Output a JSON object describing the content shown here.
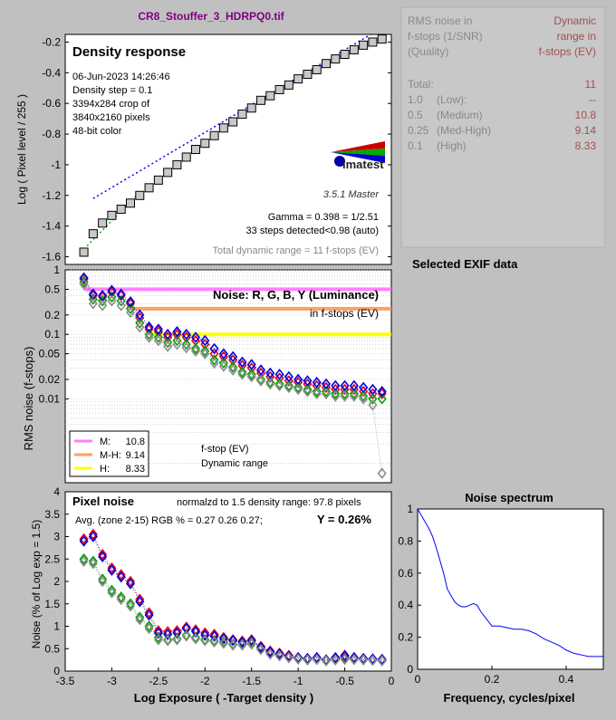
{
  "title": "CR8_Stouffer_3_HDRPQ0.tif",
  "colors": {
    "background": "#c0c0c0",
    "title": "#800080",
    "panel": "#c8c8c8",
    "red": "#e8001a",
    "green": "#00a000",
    "blue": "#0000e0",
    "gray": "#8c8c8c",
    "magenta": "#ff80ff",
    "orange": "#ffa060",
    "yellow": "#ffff00",
    "dark_red_value": "#804040"
  },
  "side_panel": {
    "header_left": [
      "RMS noise in",
      "f-stops (1/SNR)",
      "(Quality)"
    ],
    "header_right": [
      "Dynamic",
      "range in",
      "f-stops (EV)"
    ],
    "rows": [
      {
        "label": "Total:",
        "quality": "",
        "value": "11"
      },
      {
        "label": "1.0",
        "quality": "(Low):",
        "value": "--"
      },
      {
        "label": "0.5",
        "quality": "(Medium)",
        "value": "10.8"
      },
      {
        "label": "0.25",
        "quality": "(Med-High)",
        "value": "9.14"
      },
      {
        "label": "0.1",
        "quality": "(High)",
        "value": "8.33"
      }
    ],
    "exif_title": "Selected EXIF data"
  },
  "chart_data": [
    {
      "type": "scatter",
      "title": "Density response",
      "ylabel": "Log ( Pixel level / 255 )",
      "xlim": [
        -3.5,
        0
      ],
      "ylim": [
        -1.65,
        -0.15
      ],
      "yticks": [
        "-0.2",
        "-0.4",
        "-0.6",
        "-0.8",
        "-1",
        "-1.2",
        "-1.4",
        "-1.6"
      ],
      "info": [
        "06-Jun-2023 14:26:46",
        "Density step = 0.1",
        "3394x284 crop of",
        "3840x2160 pixels",
        "48-bit color"
      ],
      "logo_text": "imatest",
      "version": "3.5.1   Master",
      "gamma": "Gamma = 0.398 = 1/2.51",
      "steps": "33 steps detected<0.98 (auto)",
      "total_dr": "Total dynamic range = 11 f-stops (EV)",
      "x": [
        -3.3,
        -3.2,
        -3.1,
        -3.0,
        -2.9,
        -2.8,
        -2.7,
        -2.6,
        -2.5,
        -2.4,
        -2.3,
        -2.2,
        -2.1,
        -2.0,
        -1.9,
        -1.8,
        -1.7,
        -1.6,
        -1.5,
        -1.4,
        -1.3,
        -1.2,
        -1.1,
        -1.0,
        -0.9,
        -0.8,
        -0.7,
        -0.6,
        -0.5,
        -0.4,
        -0.3,
        -0.2,
        -0.1
      ],
      "y": [
        -1.57,
        -1.45,
        -1.38,
        -1.33,
        -1.29,
        -1.25,
        -1.2,
        -1.15,
        -1.1,
        -1.05,
        -1.0,
        -0.95,
        -0.9,
        -0.86,
        -0.81,
        -0.76,
        -0.72,
        -0.67,
        -0.63,
        -0.58,
        -0.55,
        -0.51,
        -0.48,
        -0.44,
        -0.41,
        -0.38,
        -0.34,
        -0.31,
        -0.28,
        -0.25,
        -0.22,
        -0.2,
        -0.18
      ]
    },
    {
      "type": "scatter",
      "title": "Noise: R, G, B, Y (Luminance)",
      "subtitle": "in f-stops (EV)",
      "ylabel": "RMS noise (f-stops)",
      "yscale": "log",
      "ylim": [
        0.0005,
        1
      ],
      "yticks": [
        "1",
        "0.5",
        "0.2",
        "0.1",
        "0.05",
        "0.02",
        "0.01"
      ],
      "legend": [
        {
          "label": "M:",
          "value": "10.8",
          "color": "#ff80ff"
        },
        {
          "label": "M-H:",
          "value": "9.14",
          "color": "#ffa060"
        },
        {
          "label": "H:",
          "value": "8.33",
          "color": "#ffff00"
        }
      ],
      "note_1": "f-stop (EV)",
      "note_2": "Dynamic range",
      "thresholds": [
        0.5,
        0.25,
        0.1
      ],
      "x": [
        -3.3,
        -3.2,
        -3.1,
        -3.0,
        -2.9,
        -2.8,
        -2.7,
        -2.6,
        -2.5,
        -2.4,
        -2.3,
        -2.2,
        -2.1,
        -2.0,
        -1.9,
        -1.8,
        -1.7,
        -1.6,
        -1.5,
        -1.4,
        -1.3,
        -1.2,
        -1.1,
        -1.0,
        -0.9,
        -0.8,
        -0.7,
        -0.6,
        -0.5,
        -0.4,
        -0.3,
        -0.2,
        -0.1
      ],
      "series": [
        {
          "name": "R",
          "values": [
            0.72,
            0.4,
            0.38,
            0.45,
            0.4,
            0.3,
            0.18,
            0.12,
            0.11,
            0.09,
            0.1,
            0.09,
            0.08,
            0.07,
            0.05,
            0.045,
            0.04,
            0.033,
            0.03,
            0.025,
            0.022,
            0.021,
            0.019,
            0.018,
            0.017,
            0.016,
            0.015,
            0.014,
            0.014,
            0.014,
            0.013,
            0.012,
            0.012
          ]
        },
        {
          "name": "G",
          "values": [
            0.65,
            0.35,
            0.33,
            0.38,
            0.33,
            0.25,
            0.15,
            0.1,
            0.09,
            0.075,
            0.08,
            0.07,
            0.06,
            0.055,
            0.04,
            0.036,
            0.031,
            0.026,
            0.024,
            0.02,
            0.018,
            0.017,
            0.016,
            0.015,
            0.014,
            0.013,
            0.013,
            0.012,
            0.012,
            0.012,
            0.011,
            0.01,
            0.01
          ]
        },
        {
          "name": "B",
          "values": [
            0.75,
            0.42,
            0.4,
            0.48,
            0.42,
            0.32,
            0.2,
            0.13,
            0.12,
            0.1,
            0.11,
            0.1,
            0.09,
            0.08,
            0.06,
            0.05,
            0.045,
            0.037,
            0.034,
            0.028,
            0.025,
            0.024,
            0.022,
            0.02,
            0.019,
            0.018,
            0.017,
            0.016,
            0.016,
            0.016,
            0.015,
            0.014,
            0.013
          ]
        },
        {
          "name": "Y",
          "values": [
            0.6,
            0.3,
            0.28,
            0.33,
            0.28,
            0.22,
            0.13,
            0.09,
            0.08,
            0.065,
            0.07,
            0.062,
            0.055,
            0.05,
            0.036,
            0.032,
            0.028,
            0.024,
            0.022,
            0.019,
            0.017,
            0.016,
            0.015,
            0.014,
            0.013,
            0.012,
            0.012,
            0.011,
            0.011,
            0.011,
            0.01,
            0.008,
            0.0007
          ]
        }
      ]
    },
    {
      "type": "scatter",
      "title": "Pixel noise",
      "subtitle": "normalzd to 1.5 density range: 97.8 pixels",
      "avg_line": "Avg. (zone 2-15) RGB % = 0.27  0.26  0.27;",
      "y_value": "Y = 0.26%",
      "xlabel": "Log Exposure ( -Target density )",
      "ylabel": "Noise (% of Log exp = 1.5)",
      "xlim": [
        -3.5,
        0
      ],
      "ylim": [
        0,
        4
      ],
      "xticks": [
        "-3.5",
        "-3",
        "-2.5",
        "-2",
        "-1.5",
        "-1",
        "-0.5",
        "0"
      ],
      "yticks": [
        "0",
        "0.5",
        "1",
        "1.5",
        "2",
        "2.5",
        "3",
        "3.5",
        "4"
      ],
      "x": [
        -3.3,
        -3.2,
        -3.1,
        -3.0,
        -2.9,
        -2.8,
        -2.7,
        -2.6,
        -2.5,
        -2.4,
        -2.3,
        -2.2,
        -2.1,
        -2.0,
        -1.9,
        -1.8,
        -1.7,
        -1.6,
        -1.5,
        -1.4,
        -1.3,
        -1.2,
        -1.1,
        -1.0,
        -0.9,
        -0.8,
        -0.7,
        -0.6,
        -0.5,
        -0.4,
        -0.3,
        -0.2,
        -0.1
      ],
      "series": [
        {
          "name": "R",
          "values": [
            2.95,
            3.05,
            2.6,
            2.3,
            2.15,
            2.0,
            1.6,
            1.3,
            0.9,
            0.88,
            0.9,
            0.98,
            0.92,
            0.85,
            0.82,
            0.75,
            0.7,
            0.67,
            0.7,
            0.55,
            0.45,
            0.4,
            0.35,
            0.3,
            0.28,
            0.3,
            0.25,
            0.28,
            0.3,
            0.3,
            0.28,
            0.27,
            0.26
          ]
        },
        {
          "name": "G",
          "values": [
            2.5,
            2.45,
            2.05,
            1.8,
            1.65,
            1.5,
            1.2,
            1.0,
            0.75,
            0.7,
            0.72,
            0.8,
            0.75,
            0.7,
            0.68,
            0.65,
            0.6,
            0.6,
            0.62,
            0.5,
            0.4,
            0.35,
            0.3,
            0.27,
            0.25,
            0.26,
            0.23,
            0.25,
            0.27,
            0.26,
            0.25,
            0.24,
            0.23
          ]
        },
        {
          "name": "B",
          "values": [
            2.9,
            3.0,
            2.55,
            2.25,
            2.1,
            1.95,
            1.55,
            1.25,
            0.85,
            0.82,
            0.85,
            0.95,
            0.88,
            0.8,
            0.78,
            0.72,
            0.68,
            0.65,
            0.68,
            0.53,
            0.43,
            0.38,
            0.33,
            0.3,
            0.28,
            0.3,
            0.25,
            0.3,
            0.35,
            0.3,
            0.28,
            0.27,
            0.26
          ]
        },
        {
          "name": "Y",
          "values": [
            2.45,
            2.4,
            2.0,
            1.75,
            1.6,
            1.45,
            1.15,
            0.95,
            0.7,
            0.68,
            0.7,
            0.78,
            0.72,
            0.68,
            0.65,
            0.62,
            0.58,
            0.58,
            0.6,
            0.48,
            0.38,
            0.34,
            0.3,
            0.27,
            0.25,
            0.26,
            0.23,
            0.25,
            0.26,
            0.26,
            0.25,
            0.24,
            0.23
          ]
        }
      ]
    },
    {
      "type": "line",
      "title": "Noise spectrum",
      "xlabel": "Frequency, cycles/pixel",
      "xlim": [
        0,
        0.5
      ],
      "ylim": [
        0,
        1
      ],
      "xticks": [
        "0",
        "0.2",
        "0.4"
      ],
      "yticks": [
        "0",
        "0.2",
        "0.4",
        "0.6",
        "0.8",
        "1"
      ],
      "x": [
        0,
        0.01,
        0.02,
        0.03,
        0.04,
        0.05,
        0.06,
        0.07,
        0.08,
        0.09,
        0.1,
        0.11,
        0.12,
        0.13,
        0.14,
        0.15,
        0.16,
        0.17,
        0.18,
        0.19,
        0.2,
        0.22,
        0.24,
        0.26,
        0.28,
        0.3,
        0.32,
        0.34,
        0.36,
        0.38,
        0.4,
        0.42,
        0.44,
        0.46,
        0.48,
        0.5
      ],
      "y": [
        1.0,
        0.96,
        0.92,
        0.88,
        0.83,
        0.76,
        0.68,
        0.6,
        0.5,
        0.46,
        0.42,
        0.4,
        0.39,
        0.39,
        0.4,
        0.41,
        0.4,
        0.36,
        0.33,
        0.3,
        0.27,
        0.27,
        0.26,
        0.25,
        0.25,
        0.24,
        0.22,
        0.19,
        0.17,
        0.15,
        0.12,
        0.1,
        0.09,
        0.08,
        0.08,
        0.08
      ]
    }
  ]
}
